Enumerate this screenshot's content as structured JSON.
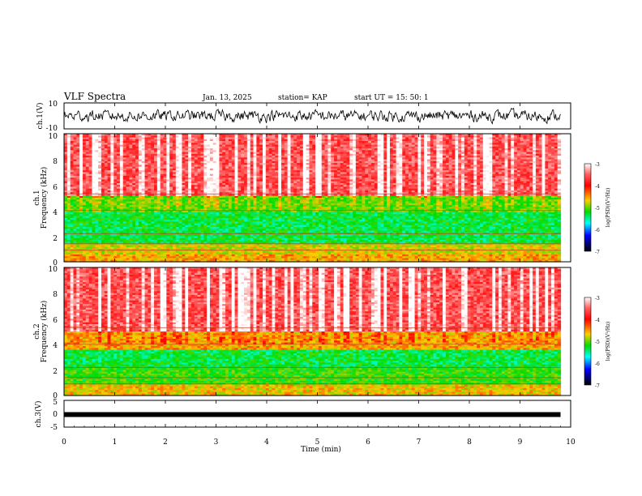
{
  "header": {
    "title": "VLF Spectra",
    "date": "Jan. 13, 2025",
    "station": "station= KAP",
    "start": "start  UT =   15: 50: 1"
  },
  "colors": {
    "spectrogram_scale": [
      "#ffffff",
      "#ff0000",
      "#ffcc00",
      "#00dd00",
      "#00ffff",
      "#0000ff",
      "#000000"
    ]
  },
  "chart_data": [
    {
      "type": "line",
      "id": "ch1-waveform",
      "ylabel": "ch.1(V)",
      "ylim": [
        -10,
        10
      ],
      "yticks": [
        -10,
        10
      ],
      "xlim": [
        0,
        9.8
      ],
      "description_values": "noisy waveform, mostly between -5 and 5 V"
    },
    {
      "type": "heatmap",
      "id": "ch1-spectrogram",
      "ylabel": "ch.1\nFrequency (kHz)",
      "ylim": [
        0,
        10
      ],
      "yticks": [
        0,
        2,
        4,
        6,
        8,
        10
      ],
      "xlim": [
        0,
        9.8
      ],
      "colorbar": {
        "label": "log(PSD)(V²/Hz)",
        "range": [
          -7,
          -3
        ],
        "ticks": [
          -3,
          -4,
          -5,
          -6,
          -7
        ]
      },
      "bands_khz": [
        {
          "from": 0,
          "to": 0.6,
          "level": -4.5
        },
        {
          "from": 0.6,
          "to": 1.5,
          "level": -4.7
        },
        {
          "from": 1.5,
          "to": 3.8,
          "level": -5.3
        },
        {
          "from": 3.8,
          "to": 5.2,
          "level": -5.0
        },
        {
          "from": 5.2,
          "to": 10,
          "level": -3.6
        }
      ]
    },
    {
      "type": "heatmap",
      "id": "ch2-spectrogram",
      "ylabel": "ch.2\nFrequency (kHz)",
      "ylim": [
        0,
        10
      ],
      "yticks": [
        0,
        2,
        4,
        6,
        8,
        10
      ],
      "xlim": [
        0,
        9.8
      ],
      "colorbar": {
        "label": "log(PSD)(V²/Hz)",
        "range": [
          -7,
          -3
        ],
        "ticks": [
          -3,
          -4,
          -5,
          -6,
          -7
        ]
      },
      "bands_khz": [
        {
          "from": 0,
          "to": 0.8,
          "level": -4.6
        },
        {
          "from": 0.8,
          "to": 2.2,
          "level": -5.1
        },
        {
          "from": 2.2,
          "to": 3.6,
          "level": -5.3
        },
        {
          "from": 3.6,
          "to": 5.0,
          "level": -4.5
        },
        {
          "from": 5.0,
          "to": 10,
          "level": -3.6
        }
      ]
    },
    {
      "type": "line",
      "id": "ch3-waveform",
      "ylabel": "ch.3(V)",
      "ylim": [
        -5,
        5
      ],
      "yticks": [
        -5,
        0,
        5
      ],
      "xlim": [
        0,
        9.8
      ],
      "constant_value": -0.3
    }
  ],
  "xaxis": {
    "label": "Time (min)",
    "range": [
      0,
      10
    ],
    "ticks": [
      "0",
      "1",
      "2",
      "3",
      "4",
      "5",
      "6",
      "7",
      "8",
      "9",
      "10"
    ]
  }
}
